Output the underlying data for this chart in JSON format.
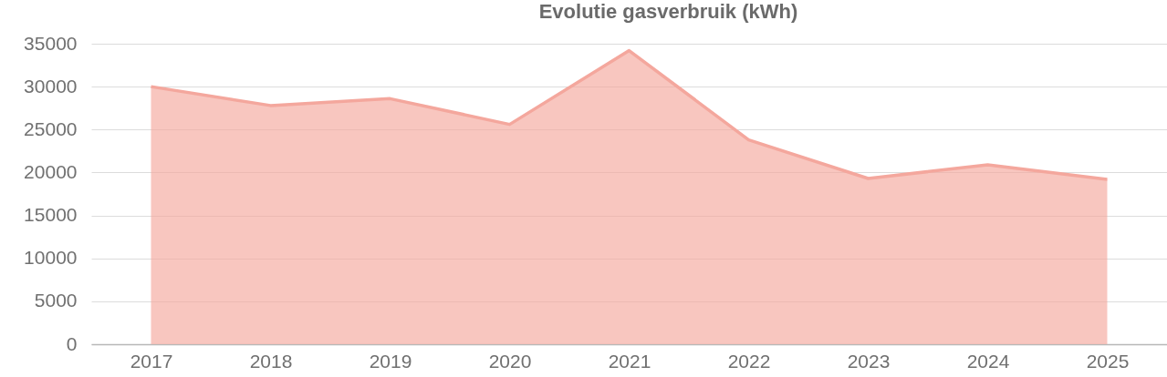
{
  "chart_data": {
    "type": "area",
    "title": "Evolutie gasverbruik (kWh)",
    "categories": [
      "2017",
      "2018",
      "2019",
      "2020",
      "2021",
      "2022",
      "2023",
      "2024",
      "2025"
    ],
    "values": [
      30000,
      27800,
      28600,
      25600,
      34200,
      23800,
      19300,
      20900,
      19200
    ],
    "color": "#f4a79d",
    "ylim": [
      0,
      35000
    ],
    "yticks": [
      0,
      5000,
      10000,
      15000,
      20000,
      25000,
      30000,
      35000
    ],
    "grid": "y"
  }
}
